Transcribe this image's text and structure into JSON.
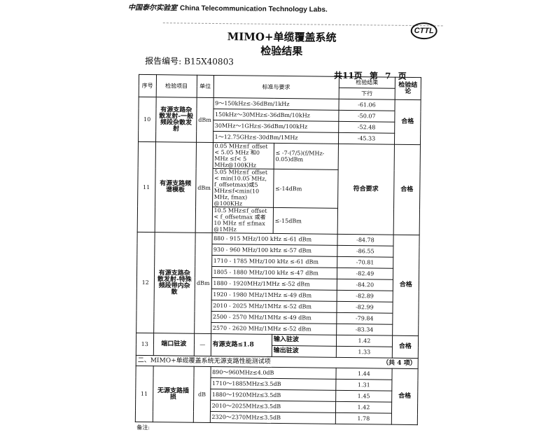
{
  "header": {
    "lab_cn": "中国泰尔实验室",
    "lab_en": "China Telecommunication Technology Labs.",
    "logo": "CTTL"
  },
  "title": {
    "line1": "MIMO+单缆覆盖系统",
    "line2": "检验结果"
  },
  "report_no": "报告编号: B15X40803",
  "pages": {
    "total": "共11页",
    "current": "第 7 页"
  },
  "columns": {
    "seq": "序号",
    "item": "检验项目",
    "unit": "单位",
    "standard": "标准与要求",
    "result": "检验结果",
    "result_sub": "下行",
    "conclusion": "检验结论"
  },
  "row10": {
    "seq": "10",
    "item": "有源支路杂散发射-一般频段杂散发射",
    "unit": "dBm",
    "conclusion": "合格",
    "lines": [
      {
        "std": "9～150kHz≤-36dBm/1kHz",
        "val": "-61.06"
      },
      {
        "std": "150kHz～30MHz≤-36dBm/10kHz",
        "val": "-50.07"
      },
      {
        "std": "30MHz～1GHz≤-36dBm/100kHz",
        "val": "-52.48"
      },
      {
        "std": "1～12.75GHz≤-30dBm/1MHz",
        "val": "-45.33"
      }
    ]
  },
  "row11": {
    "seq": "11",
    "item": "有源支路频谱模板",
    "unit": "dBm",
    "result": "符合要求",
    "conclusion": "合格",
    "lines": [
      {
        "cond": "0.05 MHz≤f_offset < 5.05 MHz 和0 MHz ≤f< 5 MHz@100KHz",
        "req": "≤ -7-(7/5)(f/MHz-0.05)dBm"
      },
      {
        "cond": "5.05 MHz≤f_offset < min(10.05 MHz, f_offsetmax)或5 MHz≤f<min(10 MHz, fmax) @100KHz",
        "req": "≤-14dBm"
      },
      {
        "cond": "10.5 MHz≤f_offset < f_offsetmax 或者 10 MHz ≤f ≤fmax @1MHz",
        "req": "≤-15dBm"
      }
    ]
  },
  "row12": {
    "seq": "12",
    "item": "有源支路杂散发射-特殊频段带内杂散",
    "unit": "dBm",
    "conclusion": "合格",
    "lines": [
      {
        "std": "880 - 915 MHz/100 kHz ≤-61 dBm",
        "val": "-84.78"
      },
      {
        "std": "930 - 960 MHz/100 kHz ≤-57 dBm",
        "val": "-86.55"
      },
      {
        "std": "1710 - 1785 MHz/100 kHz ≤-61 dBm",
        "val": "-70.81"
      },
      {
        "std": "1805 - 1880 MHz/100 kHz ≤-47 dBm",
        "val": "-82.49"
      },
      {
        "std": "1880 - 1920MHz/1MHz ≤-52 dBm",
        "val": "-84.20"
      },
      {
        "std": "1920 - 1980 MHz/1MHz ≤-49 dBm",
        "val": "-82.89"
      },
      {
        "std": "2010 - 2025 MHz/1MHz ≤-52 dBm",
        "val": "-82.99"
      },
      {
        "std": "2500 - 2570 MHz/1MHz ≤-49 dBm",
        "val": "-79.84"
      },
      {
        "std": "2570 - 2620 MHz/1MHz ≤-52 dBm",
        "val": "-83.34"
      }
    ]
  },
  "row13": {
    "seq": "13",
    "item": "端口驻波",
    "unit": "—",
    "std": "有源支路≤1.8",
    "conclusion": "合格",
    "lines": [
      {
        "label": "输入驻波",
        "val": "1.42"
      },
      {
        "label": "输出驻波",
        "val": "1.33"
      }
    ]
  },
  "section2": {
    "title": "二、MIMO+单缆覆盖系统无源支路性能测试项",
    "count": "（共 4 项）"
  },
  "row_p11": {
    "seq": "11",
    "item": "无源支路插损",
    "unit": "dB",
    "conclusion": "合格",
    "lines": [
      {
        "std": "890～960MHz≤4.0dB",
        "val": "1.44"
      },
      {
        "std": "1710～1885MHz≤3.5dB",
        "val": "1.31"
      },
      {
        "std": "1880～1920MHz≤3.5dB",
        "val": "1.45"
      },
      {
        "std": "2010～2025MHz≤3.5dB",
        "val": "1.42"
      },
      {
        "std": "2320～2370MHz≤3.5dB",
        "val": "1.78"
      }
    ]
  },
  "note": "备注:"
}
